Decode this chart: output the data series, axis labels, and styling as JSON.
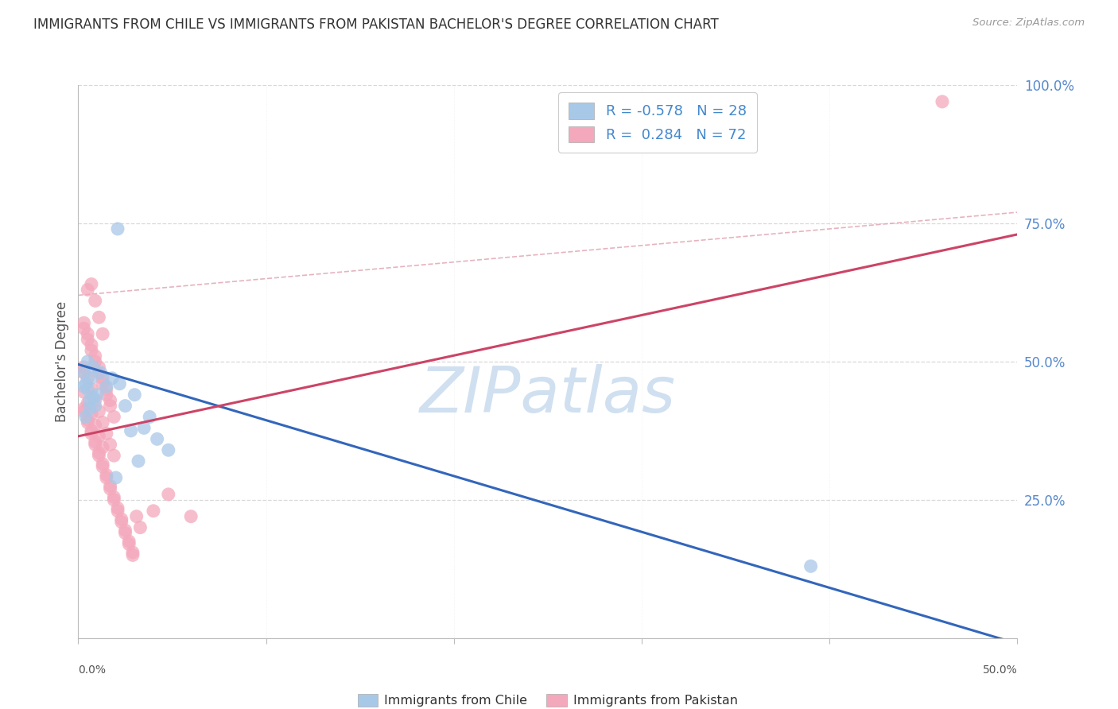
{
  "title": "IMMIGRANTS FROM CHILE VS IMMIGRANTS FROM PAKISTAN BACHELOR'S DEGREE CORRELATION CHART",
  "source": "Source: ZipAtlas.com",
  "ylabel": "Bachelor's Degree",
  "x_min": 0.0,
  "x_max": 0.5,
  "y_min": 0.0,
  "y_max": 1.0,
  "chile_R": -0.578,
  "chile_N": 28,
  "pakistan_R": 0.284,
  "pakistan_N": 72,
  "chile_color": "#a8c8e8",
  "pakistan_color": "#f4a8bc",
  "chile_line_color": "#3366bb",
  "pakistan_line_color": "#cc4466",
  "diagonal_line_color": "#e0a0b0",
  "watermark_color": "#d0e0f0",
  "background_color": "#ffffff",
  "grid_color": "#d8d8d8",
  "y_ticks": [
    0.0,
    0.25,
    0.5,
    0.75,
    1.0
  ],
  "y_tick_labels_right": [
    "",
    "25.0%",
    "50.0%",
    "75.0%",
    "100.0%"
  ],
  "chile_line_x0": 0.0,
  "chile_line_y0": 0.495,
  "chile_line_x1": 0.5,
  "chile_line_y1": -0.01,
  "pak_line_x0": 0.0,
  "pak_line_y0": 0.365,
  "pak_line_x1": 0.5,
  "pak_line_y1": 0.73,
  "diag_line_x0": 0.0,
  "diag_line_y0": 0.62,
  "diag_line_x1": 0.5,
  "diag_line_y1": 0.77,
  "chile_points_x": [
    0.021,
    0.005,
    0.008,
    0.012,
    0.007,
    0.004,
    0.015,
    0.01,
    0.006,
    0.009,
    0.018,
    0.022,
    0.03,
    0.025,
    0.035,
    0.042,
    0.048,
    0.038,
    0.028,
    0.032,
    0.003,
    0.005,
    0.008,
    0.006,
    0.004,
    0.02,
    0.39,
    0.003
  ],
  "chile_points_y": [
    0.74,
    0.5,
    0.49,
    0.48,
    0.47,
    0.46,
    0.455,
    0.44,
    0.43,
    0.42,
    0.47,
    0.46,
    0.44,
    0.42,
    0.38,
    0.36,
    0.34,
    0.4,
    0.375,
    0.32,
    0.455,
    0.45,
    0.435,
    0.415,
    0.4,
    0.29,
    0.13,
    0.48
  ],
  "pakistan_points_x": [
    0.003,
    0.005,
    0.007,
    0.009,
    0.011,
    0.013,
    0.003,
    0.005,
    0.007,
    0.009,
    0.011,
    0.013,
    0.015,
    0.017,
    0.019,
    0.003,
    0.005,
    0.007,
    0.009,
    0.011,
    0.013,
    0.015,
    0.017,
    0.003,
    0.005,
    0.007,
    0.009,
    0.011,
    0.013,
    0.015,
    0.017,
    0.019,
    0.021,
    0.023,
    0.025,
    0.027,
    0.029,
    0.003,
    0.005,
    0.007,
    0.009,
    0.011,
    0.013,
    0.003,
    0.005,
    0.007,
    0.009,
    0.011,
    0.013,
    0.015,
    0.017,
    0.019,
    0.003,
    0.005,
    0.007,
    0.009,
    0.011,
    0.013,
    0.015,
    0.017,
    0.019,
    0.021,
    0.023,
    0.025,
    0.027,
    0.029,
    0.031,
    0.033,
    0.04,
    0.048,
    0.06,
    0.46
  ],
  "pakistan_points_y": [
    0.48,
    0.63,
    0.64,
    0.61,
    0.58,
    0.55,
    0.56,
    0.54,
    0.52,
    0.5,
    0.48,
    0.46,
    0.44,
    0.42,
    0.4,
    0.57,
    0.55,
    0.53,
    0.51,
    0.49,
    0.47,
    0.45,
    0.43,
    0.415,
    0.395,
    0.375,
    0.355,
    0.335,
    0.315,
    0.295,
    0.275,
    0.255,
    0.235,
    0.215,
    0.195,
    0.175,
    0.155,
    0.445,
    0.425,
    0.405,
    0.385,
    0.365,
    0.345,
    0.49,
    0.47,
    0.45,
    0.43,
    0.41,
    0.39,
    0.37,
    0.35,
    0.33,
    0.41,
    0.39,
    0.37,
    0.35,
    0.33,
    0.31,
    0.29,
    0.27,
    0.25,
    0.23,
    0.21,
    0.19,
    0.17,
    0.15,
    0.22,
    0.2,
    0.23,
    0.26,
    0.22,
    0.97
  ]
}
